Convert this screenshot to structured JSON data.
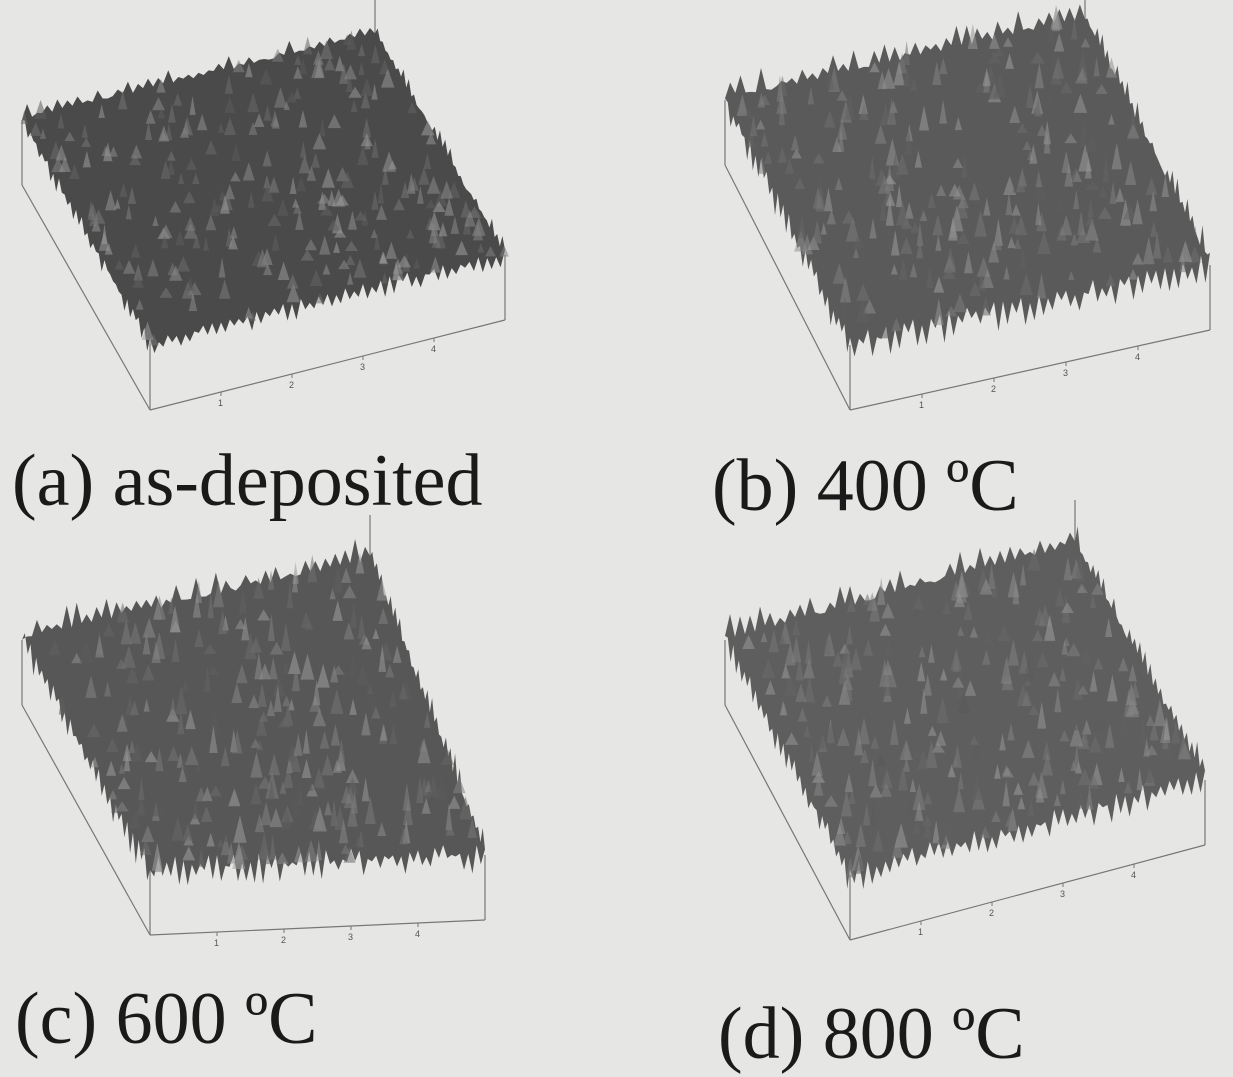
{
  "panels": [
    {
      "caption": "(a) as-deposited"
    },
    {
      "caption": "(b) 400 ºC"
    },
    {
      "caption": "(c) 600 ºC"
    },
    {
      "caption": "(d) 800 ºC"
    }
  ],
  "axis_ticks": [
    "1",
    "2",
    "3",
    "4"
  ]
}
